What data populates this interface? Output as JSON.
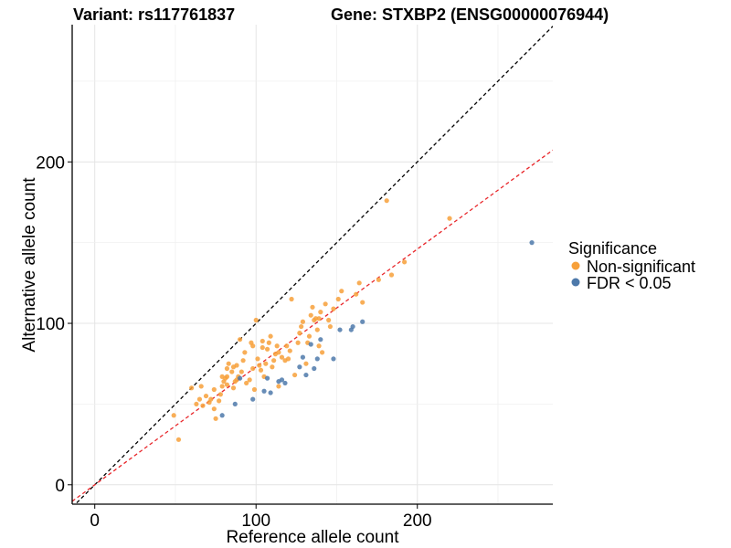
{
  "chart_data": {
    "type": "scatter",
    "title_left": "Variant: rs117761837",
    "title_right": "Gene: STXBP2 (ENSG00000076944)",
    "xlabel": "Reference allele count",
    "ylabel": "Alternative allele count",
    "xlim": [
      -14,
      284
    ],
    "ylim": [
      -12,
      285
    ],
    "x_ticks": [
      0,
      100,
      200
    ],
    "y_ticks": [
      0,
      100,
      200
    ],
    "x_tick_labels": [
      "0",
      "100",
      "200"
    ],
    "y_tick_labels": [
      "0",
      "100",
      "200"
    ],
    "grid": true,
    "legend": {
      "title": "Significance",
      "position": "right",
      "entries": [
        {
          "label": "Non-significant",
          "color": "#F7A03A"
        },
        {
          "label": "FDR < 0.05",
          "color": "#4D79AA"
        }
      ]
    },
    "reference_lines": [
      {
        "slope": 1,
        "intercept": 0,
        "color": "#000000",
        "style": "dashed"
      },
      {
        "slope": 0.73,
        "intercept": 0,
        "color": "#E8262A",
        "style": "dashed"
      }
    ],
    "series": [
      {
        "color": "#F7A03A",
        "points": [
          [
            49,
            43
          ],
          [
            52,
            28
          ],
          [
            60,
            60
          ],
          [
            63,
            50
          ],
          [
            65,
            53
          ],
          [
            66,
            61
          ],
          [
            67,
            49
          ],
          [
            69,
            55
          ],
          [
            71,
            51
          ],
          [
            72,
            53
          ],
          [
            74,
            47
          ],
          [
            74,
            59
          ],
          [
            75,
            41
          ],
          [
            77,
            52
          ],
          [
            78,
            56
          ],
          [
            79,
            61
          ],
          [
            79,
            67
          ],
          [
            80,
            64
          ],
          [
            81,
            66
          ],
          [
            82,
            62
          ],
          [
            82,
            67
          ],
          [
            82,
            72
          ],
          [
            83,
            75
          ],
          [
            85,
            70
          ],
          [
            86,
            73
          ],
          [
            86,
            60
          ],
          [
            87,
            64
          ],
          [
            88,
            74
          ],
          [
            88,
            65
          ],
          [
            89,
            67
          ],
          [
            90,
            90
          ],
          [
            91,
            70
          ],
          [
            92,
            77
          ],
          [
            93,
            82
          ],
          [
            94,
            63
          ],
          [
            96,
            65
          ],
          [
            97,
            88
          ],
          [
            98,
            72
          ],
          [
            98,
            86
          ],
          [
            99,
            59
          ],
          [
            100,
            102
          ],
          [
            101,
            78
          ],
          [
            102,
            74
          ],
          [
            103,
            71
          ],
          [
            104,
            85
          ],
          [
            104,
            89
          ],
          [
            105,
            67
          ],
          [
            106,
            75
          ],
          [
            107,
            84
          ],
          [
            108,
            88
          ],
          [
            109,
            92
          ],
          [
            110,
            73
          ],
          [
            111,
            77
          ],
          [
            112,
            81
          ],
          [
            113,
            86
          ],
          [
            114,
            82
          ],
          [
            114,
            61
          ],
          [
            116,
            79
          ],
          [
            118,
            77
          ],
          [
            119,
            86
          ],
          [
            120,
            78
          ],
          [
            121,
            83
          ],
          [
            122,
            115
          ],
          [
            124,
            68
          ],
          [
            126,
            88
          ],
          [
            127,
            94
          ],
          [
            128,
            98
          ],
          [
            129,
            101
          ],
          [
            131,
            75
          ],
          [
            132,
            88
          ],
          [
            133,
            92
          ],
          [
            134,
            105
          ],
          [
            135,
            110
          ],
          [
            136,
            102
          ],
          [
            137,
            103
          ],
          [
            138,
            96
          ],
          [
            139,
            86
          ],
          [
            139,
            103
          ],
          [
            140,
            107
          ],
          [
            141,
            82
          ],
          [
            143,
            112
          ],
          [
            145,
            102
          ],
          [
            146,
            98
          ],
          [
            148,
            109
          ],
          [
            151,
            115
          ],
          [
            153,
            120
          ],
          [
            162,
            118
          ],
          [
            164,
            125
          ],
          [
            166,
            113
          ],
          [
            176,
            127
          ],
          [
            181,
            176
          ],
          [
            184,
            130
          ],
          [
            192,
            138
          ],
          [
            220,
            165
          ]
        ]
      },
      {
        "color": "#4D79AA",
        "points": [
          [
            79,
            43
          ],
          [
            87,
            50
          ],
          [
            90,
            66
          ],
          [
            98,
            53
          ],
          [
            105,
            58
          ],
          [
            107,
            66
          ],
          [
            109,
            57
          ],
          [
            114,
            64
          ],
          [
            116,
            65
          ],
          [
            118,
            63
          ],
          [
            127,
            73
          ],
          [
            129,
            79
          ],
          [
            131,
            68
          ],
          [
            134,
            87
          ],
          [
            136,
            72
          ],
          [
            138,
            78
          ],
          [
            140,
            90
          ],
          [
            148,
            78
          ],
          [
            152,
            96
          ],
          [
            159,
            96
          ],
          [
            160,
            98
          ],
          [
            166,
            101
          ],
          [
            271,
            150
          ]
        ]
      }
    ]
  }
}
